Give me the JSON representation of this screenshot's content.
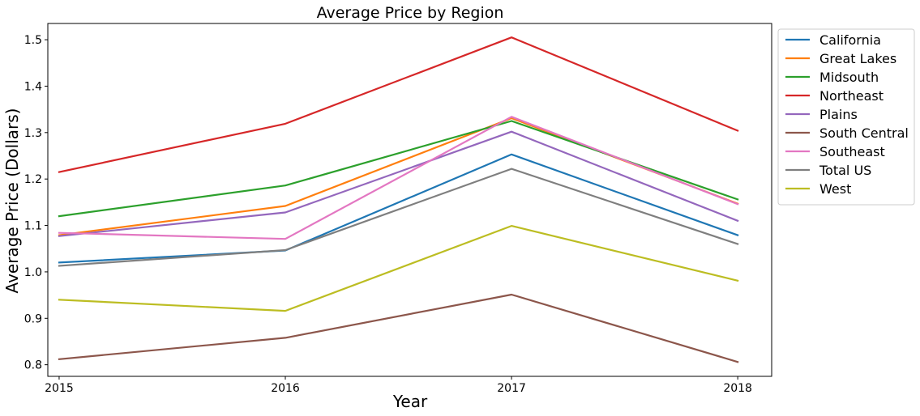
{
  "chart_data": {
    "type": "line",
    "title": "Average Price by Region",
    "xlabel": "Year",
    "ylabel": "Average Price (Dollars)",
    "categories": [
      "2015",
      "2016",
      "2017",
      "2018"
    ],
    "x": [
      2015,
      2016,
      2017,
      2018
    ],
    "xlim": [
      2014.95,
      2018.15
    ],
    "ylim": [
      0.775,
      1.535
    ],
    "yticks": [
      0.8,
      0.9,
      1.0,
      1.1,
      1.2,
      1.3,
      1.4,
      1.5
    ],
    "ytick_labels": [
      "0.8",
      "0.9",
      "1.0",
      "1.1",
      "1.2",
      "1.3",
      "1.4",
      "1.5"
    ],
    "grid": false,
    "legend_position": "outside-upper-right",
    "series": [
      {
        "name": "California",
        "color": "#1f77b4",
        "values": [
          1.02,
          1.046,
          1.253,
          1.079
        ]
      },
      {
        "name": "Great Lakes",
        "color": "#ff7f0e",
        "values": [
          1.079,
          1.142,
          1.331,
          1.147
        ]
      },
      {
        "name": "Midsouth",
        "color": "#2ca02c",
        "values": [
          1.12,
          1.186,
          1.325,
          1.156
        ]
      },
      {
        "name": "Northeast",
        "color": "#d62728",
        "values": [
          1.215,
          1.319,
          1.505,
          1.304
        ]
      },
      {
        "name": "Plains",
        "color": "#9467bd",
        "values": [
          1.077,
          1.128,
          1.302,
          1.11
        ]
      },
      {
        "name": "South Central",
        "color": "#8c564b",
        "values": [
          0.812,
          0.858,
          0.951,
          0.806
        ]
      },
      {
        "name": "Southeast",
        "color": "#e377c2",
        "values": [
          1.084,
          1.071,
          1.334,
          1.146
        ]
      },
      {
        "name": "Total US",
        "color": "#7f7f7f",
        "values": [
          1.013,
          1.047,
          1.222,
          1.06
        ]
      },
      {
        "name": "West",
        "color": "#bcbd22",
        "values": [
          0.94,
          0.916,
          1.099,
          0.981
        ]
      }
    ]
  }
}
